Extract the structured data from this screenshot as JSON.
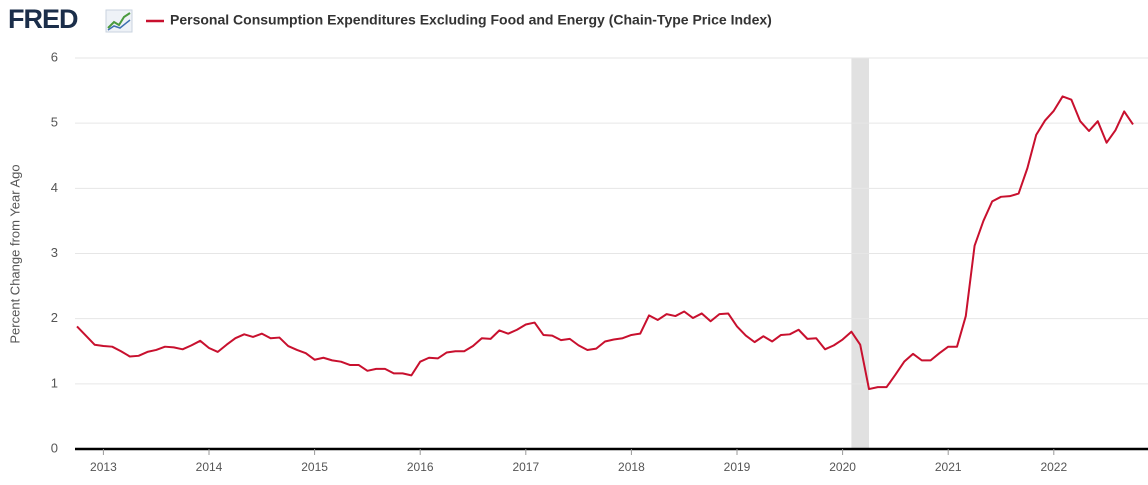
{
  "logo": "FRED",
  "chart_data": {
    "type": "line",
    "ylabel": "Percent Change from Year Ago",
    "x": [
      2012.75,
      2012.8333,
      2012.9167,
      2013,
      2013.0833,
      2013.1667,
      2013.25,
      2013.3333,
      2013.4167,
      2013.5,
      2013.5833,
      2013.6667,
      2013.75,
      2013.8333,
      2013.9167,
      2014,
      2014.0833,
      2014.1667,
      2014.25,
      2014.3333,
      2014.4167,
      2014.5,
      2014.5833,
      2014.6667,
      2014.75,
      2014.8333,
      2014.9167,
      2015,
      2015.0833,
      2015.1667,
      2015.25,
      2015.3333,
      2015.4167,
      2015.5,
      2015.5833,
      2015.6667,
      2015.75,
      2015.8333,
      2015.9167,
      2016,
      2016.0833,
      2016.1667,
      2016.25,
      2016.3333,
      2016.4167,
      2016.5,
      2016.5833,
      2016.6667,
      2016.75,
      2016.8333,
      2016.9167,
      2017,
      2017.0833,
      2017.1667,
      2017.25,
      2017.3333,
      2017.4167,
      2017.5,
      2017.5833,
      2017.6667,
      2017.75,
      2017.8333,
      2017.9167,
      2018,
      2018.0833,
      2018.1667,
      2018.25,
      2018.3333,
      2018.4167,
      2018.5,
      2018.5833,
      2018.6667,
      2018.75,
      2018.8333,
      2018.9167,
      2019,
      2019.0833,
      2019.1667,
      2019.25,
      2019.3333,
      2019.4167,
      2019.5,
      2019.5833,
      2019.6667,
      2019.75,
      2019.8333,
      2019.9167,
      2020,
      2020.0833,
      2020.1667,
      2020.25,
      2020.3333,
      2020.4167,
      2020.5,
      2020.5833,
      2020.6667,
      2020.75,
      2020.8333,
      2020.9167,
      2021,
      2021.0833,
      2021.1667,
      2021.25,
      2021.3333,
      2021.4167,
      2021.5,
      2021.5833,
      2021.6667,
      2021.75,
      2021.8333,
      2021.9167,
      2022,
      2022.0833,
      2022.1667,
      2022.25,
      2022.3333,
      2022.4167,
      2022.5,
      2022.5833,
      2022.6667,
      2022.75
    ],
    "series": [
      {
        "name": "Personal Consumption Expenditures Excluding Food and Energy (Chain-Type Price Index)",
        "color": "#c8102e",
        "values": [
          1.88,
          1.74,
          1.6,
          1.58,
          1.57,
          1.5,
          1.42,
          1.43,
          1.49,
          1.52,
          1.57,
          1.56,
          1.53,
          1.59,
          1.66,
          1.55,
          1.49,
          1.6,
          1.7,
          1.76,
          1.72,
          1.77,
          1.7,
          1.71,
          1.58,
          1.52,
          1.47,
          1.37,
          1.4,
          1.36,
          1.34,
          1.29,
          1.29,
          1.2,
          1.23,
          1.23,
          1.16,
          1.16,
          1.13,
          1.34,
          1.4,
          1.39,
          1.48,
          1.5,
          1.5,
          1.58,
          1.7,
          1.69,
          1.82,
          1.77,
          1.83,
          1.91,
          1.94,
          1.75,
          1.74,
          1.67,
          1.69,
          1.59,
          1.52,
          1.54,
          1.65,
          1.68,
          1.7,
          1.75,
          1.77,
          2.05,
          1.98,
          2.07,
          2.04,
          2.11,
          2.01,
          2.08,
          1.96,
          2.07,
          2.08,
          1.88,
          1.74,
          1.64,
          1.73,
          1.65,
          1.75,
          1.76,
          1.83,
          1.69,
          1.7,
          1.53,
          1.59,
          1.68,
          1.8,
          1.6,
          0.92,
          0.95,
          0.95,
          1.14,
          1.34,
          1.46,
          1.36,
          1.36,
          1.47,
          1.57,
          1.57,
          2.04,
          3.12,
          3.5,
          3.8,
          3.87,
          3.88,
          3.92,
          4.31,
          4.82,
          5.04,
          5.19,
          5.41,
          5.36,
          5.03,
          4.88,
          5.03,
          4.7,
          4.89,
          5.18,
          4.98
        ]
      }
    ],
    "recessions": [
      [
        2020.0833,
        2020.25
      ]
    ],
    "recession_color": "#e1e1e1",
    "xlim": [
      2012.75,
      2022.75
    ],
    "xticks": [
      2013,
      2014,
      2015,
      2016,
      2017,
      2018,
      2019,
      2020,
      2021,
      2022
    ],
    "ylim": [
      0,
      6
    ],
    "yticks": [
      0,
      1,
      2,
      3,
      4,
      5,
      6
    ],
    "grid": true
  }
}
